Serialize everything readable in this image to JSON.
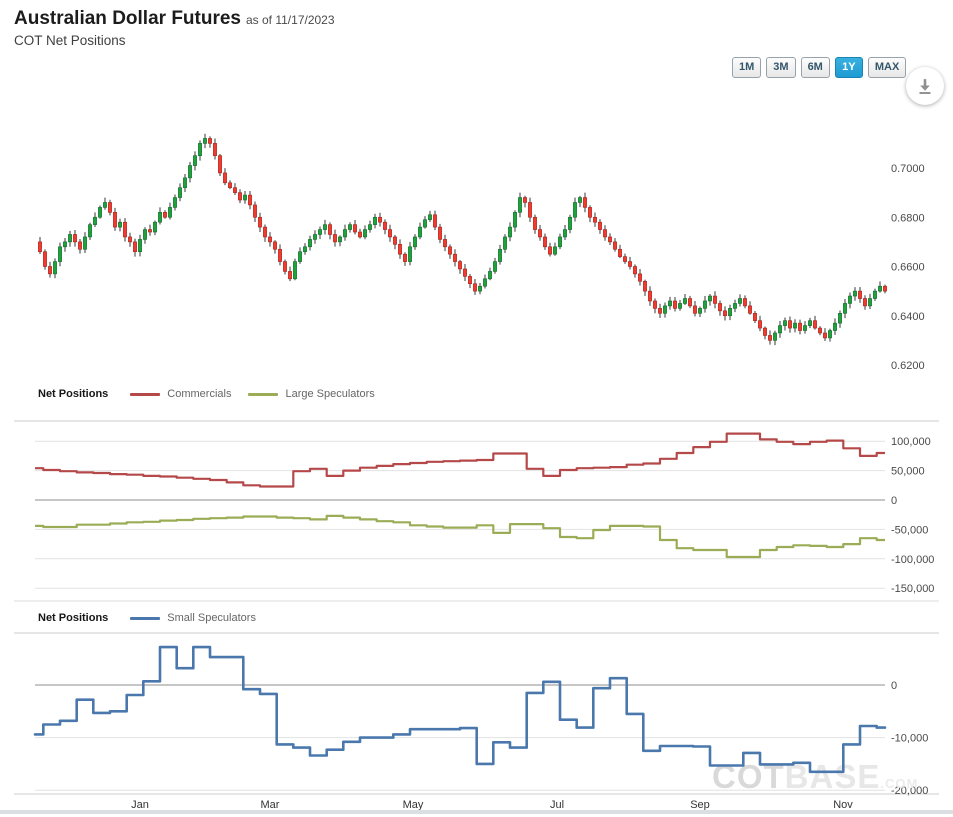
{
  "header": {
    "title": "Australian Dollar Futures",
    "as_of": "as of 11/17/2023",
    "subtitle": "COT Net Positions"
  },
  "controls": {
    "ranges": [
      "1M",
      "3M",
      "6M",
      "1Y",
      "MAX"
    ],
    "selected": "1Y",
    "download_icon": "download-icon"
  },
  "colors": {
    "candle_up": "#1fa23c",
    "candle_up_border": "#0d6b26",
    "candle_down": "#ef3b30",
    "candle_down_border": "#a81f14",
    "wick": "#3a3a3a",
    "commercials": "#b5494a",
    "large_speculators": "#9aad56",
    "small_speculators": "#4a78ad",
    "selected_button": "#2aa3db",
    "gridline": "#e2e2e2",
    "zero_line": "#8e8e8e",
    "panel_border": "#cccccc",
    "tick_text": "#4a4a4a",
    "watermark": "#d9d9d9"
  },
  "watermark": {
    "text_bold": "COT",
    "text_light": "BASE",
    "text_suffix": ".COM"
  },
  "chart_data": [
    {
      "type": "candlestick",
      "title": "Australian Dollar Futures price",
      "ylim": [
        0.62,
        0.72
      ],
      "y_ticks": [
        0.7,
        0.68,
        0.66,
        0.64,
        0.62
      ],
      "x_tick_labels": [
        "Jan",
        "Mar",
        "May",
        "Jul",
        "Sep",
        "Nov"
      ],
      "closes": [
        0.67,
        0.666,
        0.66,
        0.657,
        0.662,
        0.668,
        0.67,
        0.673,
        0.67,
        0.667,
        0.672,
        0.677,
        0.68,
        0.684,
        0.686,
        0.682,
        0.676,
        0.678,
        0.672,
        0.67,
        0.666,
        0.671,
        0.675,
        0.674,
        0.678,
        0.682,
        0.68,
        0.684,
        0.688,
        0.692,
        0.696,
        0.701,
        0.705,
        0.71,
        0.712,
        0.71,
        0.705,
        0.698,
        0.694,
        0.692,
        0.69,
        0.687,
        0.689,
        0.685,
        0.68,
        0.676,
        0.672,
        0.67,
        0.667,
        0.662,
        0.658,
        0.655,
        0.662,
        0.666,
        0.668,
        0.671,
        0.673,
        0.675,
        0.677,
        0.673,
        0.67,
        0.672,
        0.675,
        0.677,
        0.674,
        0.672,
        0.675,
        0.677,
        0.68,
        0.678,
        0.675,
        0.672,
        0.669,
        0.665,
        0.662,
        0.668,
        0.672,
        0.676,
        0.679,
        0.681,
        0.676,
        0.671,
        0.668,
        0.665,
        0.662,
        0.659,
        0.656,
        0.653,
        0.65,
        0.652,
        0.655,
        0.658,
        0.662,
        0.667,
        0.672,
        0.676,
        0.682,
        0.688,
        0.686,
        0.68,
        0.675,
        0.672,
        0.668,
        0.665,
        0.668,
        0.672,
        0.675,
        0.68,
        0.686,
        0.688,
        0.684,
        0.68,
        0.678,
        0.675,
        0.672,
        0.67,
        0.667,
        0.664,
        0.662,
        0.66,
        0.657,
        0.654,
        0.65,
        0.646,
        0.643,
        0.641,
        0.644,
        0.646,
        0.643,
        0.645,
        0.647,
        0.644,
        0.641,
        0.643,
        0.646,
        0.648,
        0.645,
        0.642,
        0.64,
        0.643,
        0.645,
        0.647,
        0.644,
        0.641,
        0.638,
        0.635,
        0.632,
        0.63,
        0.633,
        0.636,
        0.638,
        0.635,
        0.637,
        0.634,
        0.636,
        0.638,
        0.635,
        0.633,
        0.631,
        0.634,
        0.637,
        0.641,
        0.645,
        0.648,
        0.65,
        0.647,
        0.644,
        0.647,
        0.65,
        0.652,
        0.65
      ]
    },
    {
      "type": "line",
      "step": true,
      "legend_title": "Net Positions",
      "y_ticks": [
        100000,
        50000,
        0,
        -50000,
        -100000,
        -150000
      ],
      "series": [
        {
          "name": "Commercials",
          "color": "#b5494a",
          "values": [
            54000,
            51000,
            49000,
            47000,
            46000,
            44000,
            43000,
            41000,
            40000,
            38000,
            36000,
            34000,
            30000,
            25000,
            23000,
            23000,
            49000,
            53000,
            41000,
            50000,
            55000,
            58000,
            61000,
            63000,
            65000,
            66000,
            67000,
            68000,
            79000,
            79000,
            53000,
            41000,
            51000,
            54000,
            55000,
            56000,
            60000,
            62000,
            70000,
            80000,
            90000,
            99000,
            113000,
            113000,
            103000,
            99000,
            95000,
            99000,
            101000,
            88000,
            75000,
            80000
          ]
        },
        {
          "name": "Large Speculators",
          "color": "#9aad56",
          "values": [
            -44000,
            -46000,
            -46000,
            -42000,
            -42000,
            -40000,
            -38000,
            -37000,
            -35000,
            -34000,
            -32000,
            -31000,
            -30000,
            -28000,
            -28000,
            -30000,
            -31000,
            -33000,
            -27000,
            -30000,
            -33000,
            -36000,
            -38000,
            -43000,
            -45000,
            -47000,
            -47000,
            -43000,
            -56000,
            -41000,
            -41000,
            -48000,
            -63000,
            -65000,
            -51000,
            -44000,
            -44000,
            -45000,
            -68000,
            -82000,
            -85000,
            -85000,
            -97000,
            -97000,
            -85000,
            -80000,
            -77000,
            -78000,
            -80000,
            -75000,
            -65000,
            -68000
          ]
        }
      ]
    },
    {
      "type": "line",
      "step": true,
      "legend_title": "Net Positions",
      "y_ticks": [
        0,
        -10000,
        -20000
      ],
      "series": [
        {
          "name": "Small Speculators",
          "color": "#4a78ad",
          "values": [
            -9400,
            -7500,
            -6800,
            -2800,
            -5300,
            -5000,
            -1900,
            700,
            7200,
            3200,
            7200,
            5300,
            5300,
            -800,
            -1700,
            -11300,
            -11900,
            -13400,
            -12300,
            -10800,
            -10000,
            -10000,
            -9400,
            -8400,
            -8400,
            -8400,
            -8200,
            -15000,
            -10900,
            -11900,
            -1500,
            600,
            -6600,
            -8100,
            -600,
            1300,
            -5500,
            -12500,
            -11600,
            -11600,
            -11700,
            -15300,
            -15300,
            -12900,
            -15100,
            -15100,
            -14800,
            -16500,
            -16500,
            -11300,
            -7800,
            -8100
          ]
        }
      ]
    }
  ]
}
